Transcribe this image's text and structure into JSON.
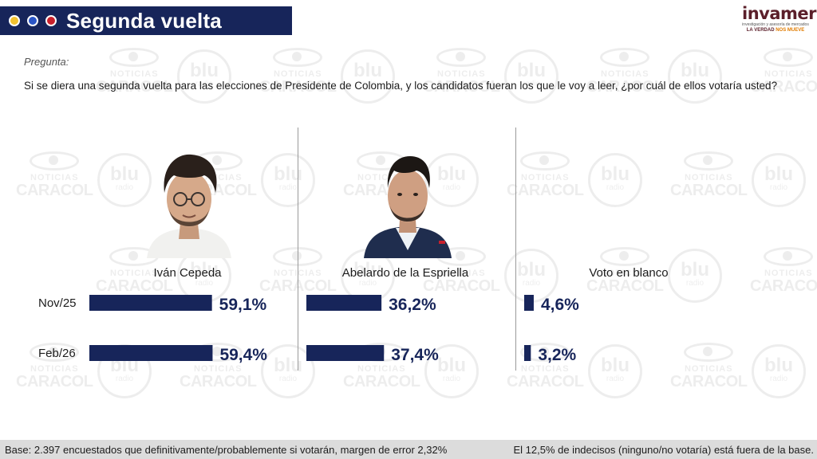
{
  "header": {
    "title": "Segunda vuelta",
    "dot_colors": [
      "#f2c230",
      "#2a55c7",
      "#c8202c"
    ]
  },
  "logo": {
    "wordmark": "invamer",
    "subtitle": "investigación y asesoría de mercados",
    "tagline_main": "LA VERDAD",
    "tagline_accent": "NOS MUEVE"
  },
  "watermarks": {
    "noticias": "NOTICIAS",
    "caracol": "CARACOL",
    "blu": "blu",
    "radio": "radio"
  },
  "question": {
    "label": "Pregunta:",
    "text": "Si se diera una segunda vuelta para las elecciones de Presidente de Colombia, y los candidatos fueran los que le voy a leer, ¿por cuál de ellos votaría usted?"
  },
  "chart_data": {
    "type": "bar",
    "categories": [
      "Nov/25",
      "Feb/26"
    ],
    "series": [
      {
        "name": "Iván Cepeda",
        "values": [
          59.1,
          59.4
        ],
        "labels": [
          "59,1%",
          "59,4%"
        ]
      },
      {
        "name": "Abelardo de la Espriella",
        "values": [
          36.2,
          37.4
        ],
        "labels": [
          "36,2%",
          "37,4%"
        ]
      },
      {
        "name": "Voto en blanco",
        "values": [
          4.6,
          3.2
        ],
        "labels": [
          "4,6%",
          "3,2%"
        ]
      }
    ],
    "unit": "%",
    "bar_color": "#17255a",
    "label_color": "#17255a",
    "title": "",
    "xlabel": "",
    "ylabel": ""
  },
  "footer": {
    "left": "Base: 2.397 encuestados que definitivamente/probablemente si votarán, margen de error 2,32%",
    "right": "El 12,5% de indecisos (ninguno/no votaría) está fuera de la base."
  }
}
